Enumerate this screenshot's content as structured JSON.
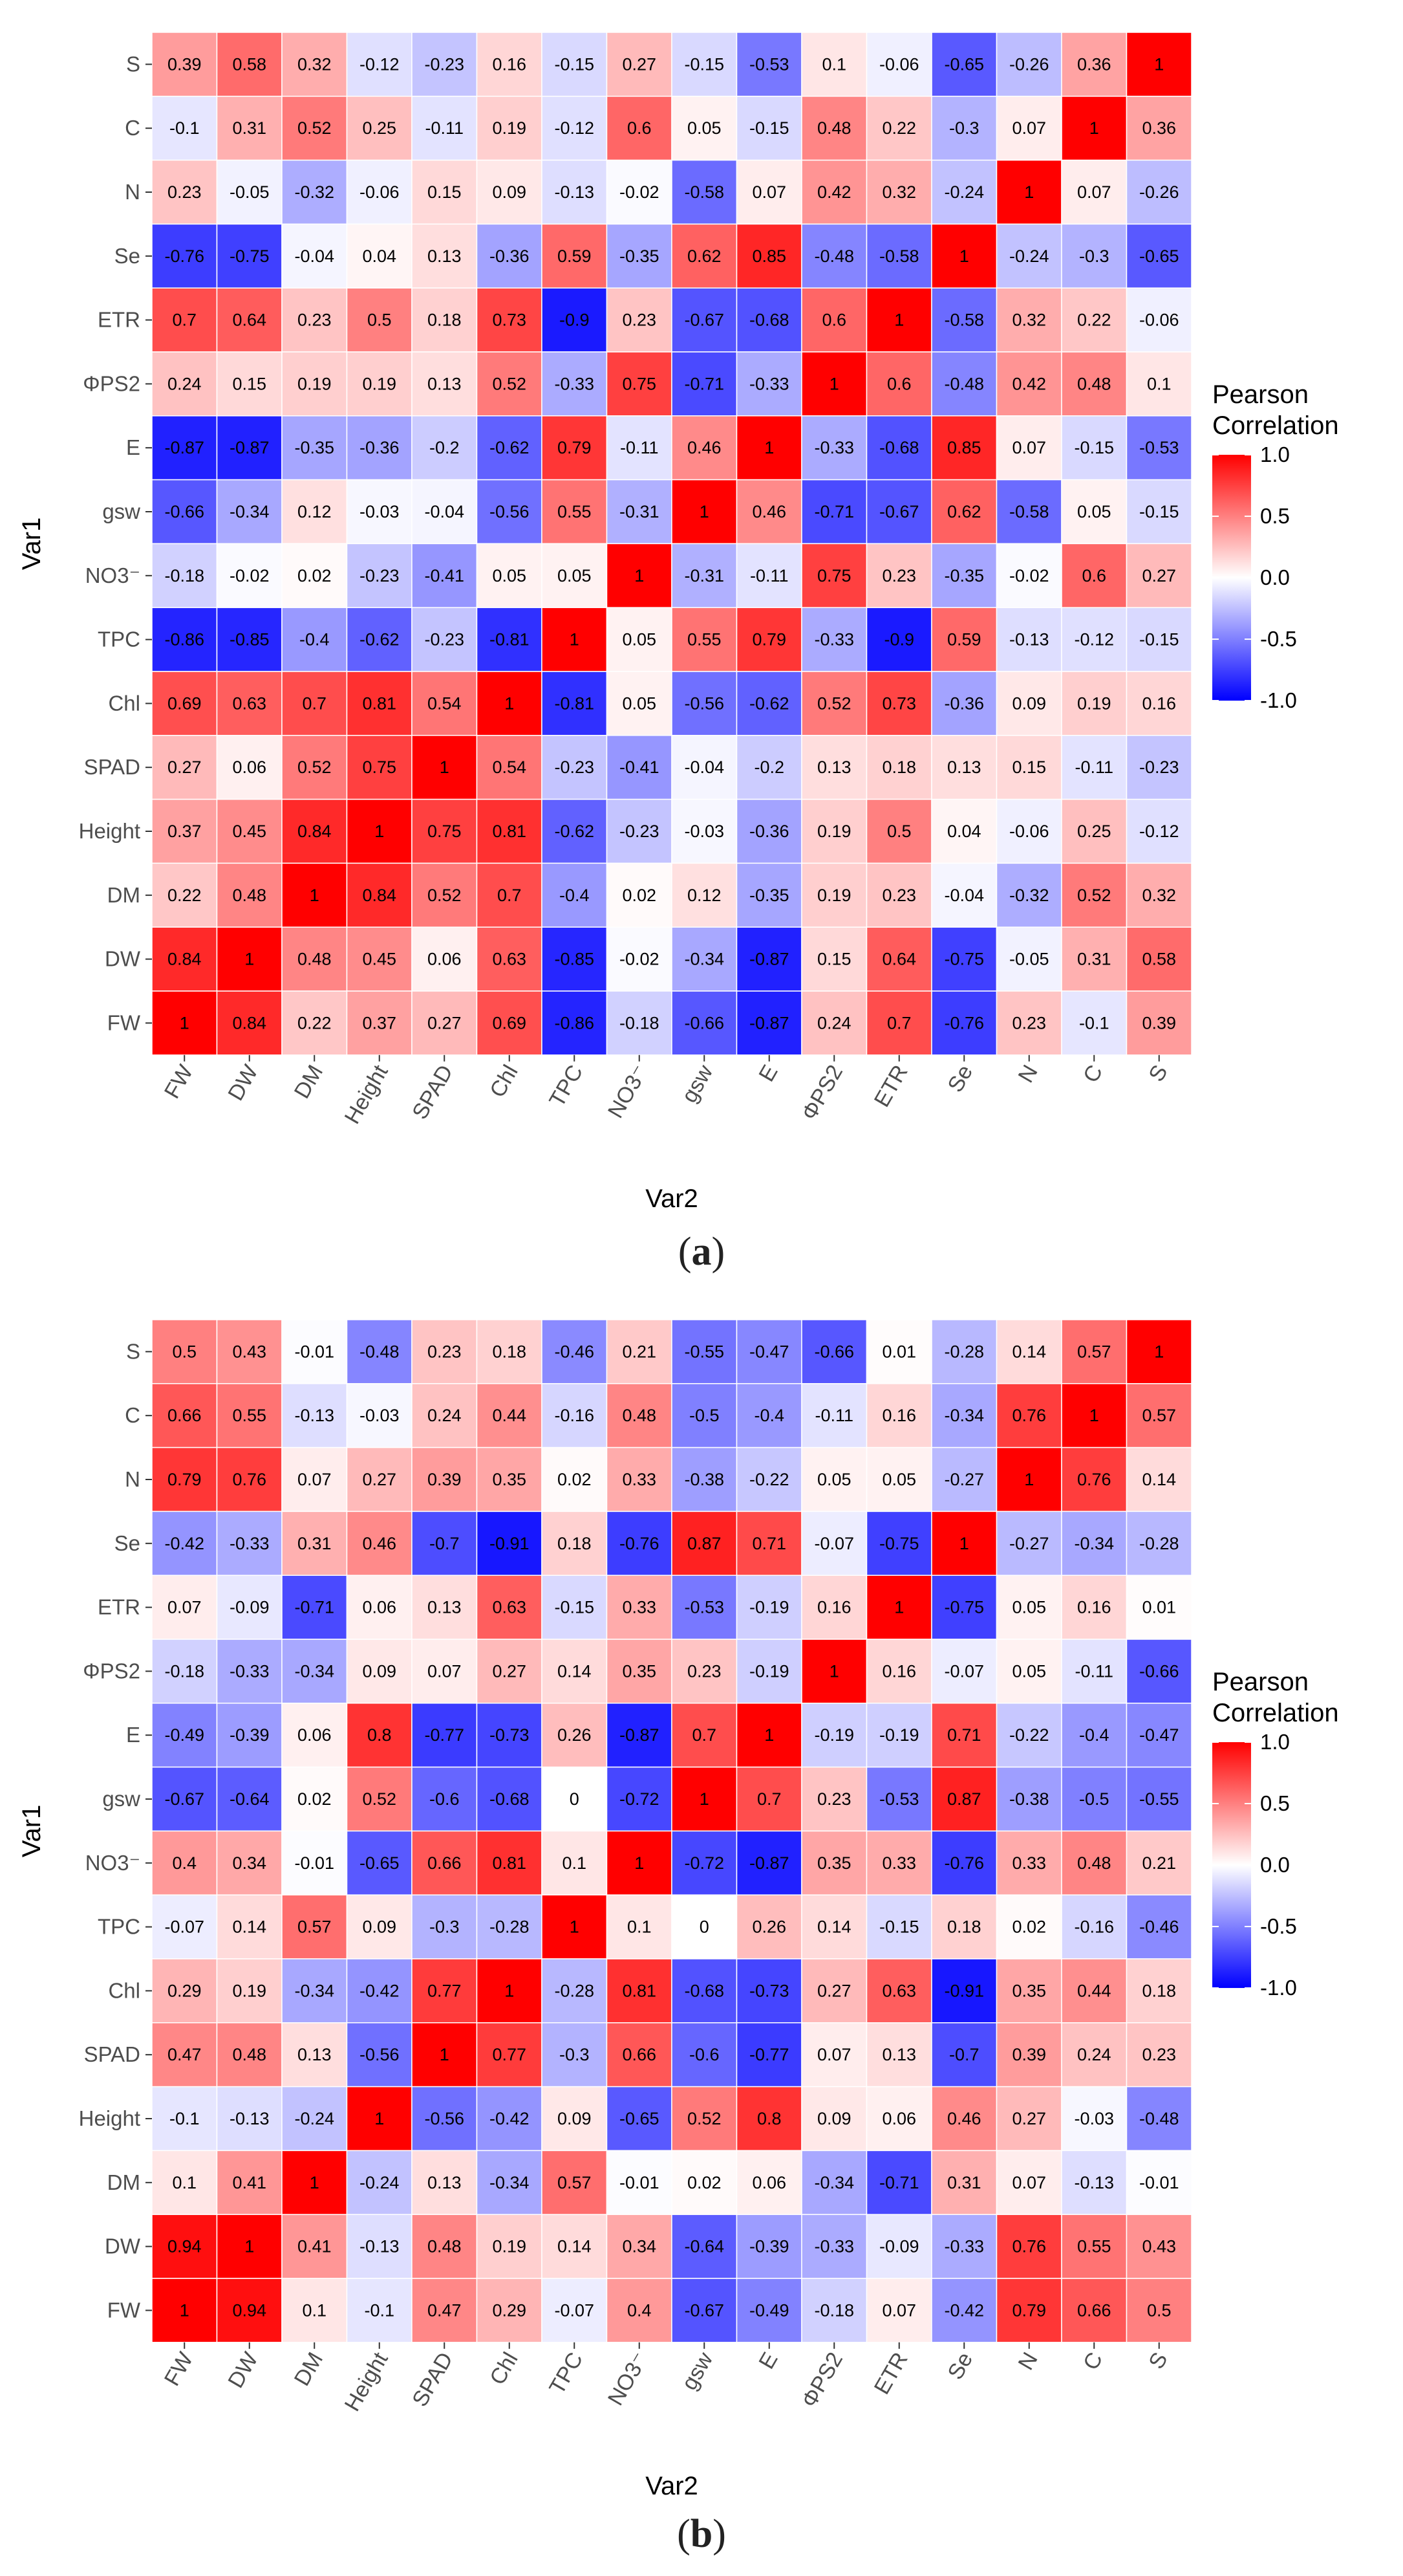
{
  "chart_data": [
    {
      "type": "heatmap",
      "panel": "a",
      "caption_open": "(",
      "caption_letter": "a",
      "caption_close": ")",
      "xlabel": "Var2",
      "ylabel": "Var1",
      "legend_title_line1": "Pearson",
      "legend_title_line2": "Correlation",
      "legend_ticks": [
        "1.0",
        "0.5",
        "0.0",
        "-0.5",
        "-1.0"
      ],
      "legend_tick_values": [
        1.0,
        0.5,
        0.0,
        -0.5,
        -1.0
      ],
      "color_low": "#0000FF",
      "color_mid": "#FFFFFF",
      "color_high": "#FF0000",
      "value_range": [
        -1,
        1
      ],
      "x_categories": [
        "FW",
        "DW",
        "DM",
        "Height",
        "SPAD",
        "Chl",
        "TPC",
        "NO3⁻",
        "gsw",
        "E",
        "ΦPS2",
        "ETR",
        "Se",
        "N",
        "C",
        "S"
      ],
      "y_categories": [
        "S",
        "C",
        "N",
        "Se",
        "ETR",
        "ΦPS2",
        "E",
        "gsw",
        "NO3⁻",
        "TPC",
        "Chl",
        "SPAD",
        "Height",
        "DM",
        "DW",
        "FW"
      ],
      "values": [
        [
          0.39,
          0.58,
          0.32,
          -0.12,
          -0.23,
          0.16,
          -0.15,
          0.27,
          -0.15,
          -0.53,
          0.1,
          -0.06,
          -0.65,
          -0.26,
          0.36,
          1
        ],
        [
          -0.1,
          0.31,
          0.52,
          0.25,
          -0.11,
          0.19,
          -0.12,
          0.6,
          0.05,
          -0.15,
          0.48,
          0.22,
          -0.3,
          0.07,
          1,
          0.36
        ],
        [
          0.23,
          -0.05,
          -0.32,
          -0.06,
          0.15,
          0.09,
          -0.13,
          -0.02,
          -0.58,
          0.07,
          0.42,
          0.32,
          -0.24,
          1,
          0.07,
          -0.26
        ],
        [
          -0.76,
          -0.75,
          -0.04,
          0.04,
          0.13,
          -0.36,
          0.59,
          -0.35,
          0.62,
          0.85,
          -0.48,
          -0.58,
          1,
          -0.24,
          -0.3,
          -0.65
        ],
        [
          0.7,
          0.64,
          0.23,
          0.5,
          0.18,
          0.73,
          -0.9,
          0.23,
          -0.67,
          -0.68,
          0.6,
          1,
          -0.58,
          0.32,
          0.22,
          -0.06
        ],
        [
          0.24,
          0.15,
          0.19,
          0.19,
          0.13,
          0.52,
          -0.33,
          0.75,
          -0.71,
          -0.33,
          1,
          0.6,
          -0.48,
          0.42,
          0.48,
          0.1
        ],
        [
          -0.87,
          -0.87,
          -0.35,
          -0.36,
          -0.2,
          -0.62,
          0.79,
          -0.11,
          0.46,
          1,
          -0.33,
          -0.68,
          0.85,
          0.07,
          -0.15,
          -0.53
        ],
        [
          -0.66,
          -0.34,
          0.12,
          -0.03,
          -0.04,
          -0.56,
          0.55,
          -0.31,
          1,
          0.46,
          -0.71,
          -0.67,
          0.62,
          -0.58,
          0.05,
          -0.15
        ],
        [
          -0.18,
          -0.02,
          0.02,
          -0.23,
          -0.41,
          0.05,
          0.05,
          1,
          -0.31,
          -0.11,
          0.75,
          0.23,
          -0.35,
          -0.02,
          0.6,
          0.27
        ],
        [
          -0.86,
          -0.85,
          -0.4,
          -0.62,
          -0.23,
          -0.81,
          1,
          0.05,
          0.55,
          0.79,
          -0.33,
          -0.9,
          0.59,
          -0.13,
          -0.12,
          -0.15
        ],
        [
          0.69,
          0.63,
          0.7,
          0.81,
          0.54,
          1,
          -0.81,
          0.05,
          -0.56,
          -0.62,
          0.52,
          0.73,
          -0.36,
          0.09,
          0.19,
          0.16
        ],
        [
          0.27,
          0.06,
          0.52,
          0.75,
          1,
          0.54,
          -0.23,
          -0.41,
          -0.04,
          -0.2,
          0.13,
          0.18,
          0.13,
          0.15,
          -0.11,
          -0.23
        ],
        [
          0.37,
          0.45,
          0.84,
          1,
          0.75,
          0.81,
          -0.62,
          -0.23,
          -0.03,
          -0.36,
          0.19,
          0.5,
          0.04,
          -0.06,
          0.25,
          -0.12
        ],
        [
          0.22,
          0.48,
          1,
          0.84,
          0.52,
          0.7,
          -0.4,
          0.02,
          0.12,
          -0.35,
          0.19,
          0.23,
          -0.04,
          -0.32,
          0.52,
          0.32
        ],
        [
          0.84,
          1,
          0.48,
          0.45,
          0.06,
          0.63,
          -0.85,
          -0.02,
          -0.34,
          -0.87,
          0.15,
          0.64,
          -0.75,
          -0.05,
          0.31,
          0.58
        ],
        [
          1,
          0.84,
          0.22,
          0.37,
          0.27,
          0.69,
          -0.86,
          -0.18,
          -0.66,
          -0.87,
          0.24,
          0.7,
          -0.76,
          0.23,
          -0.1,
          0.39
        ]
      ]
    },
    {
      "type": "heatmap",
      "panel": "b",
      "caption_open": "(",
      "caption_letter": "b",
      "caption_close": ")",
      "xlabel": "Var2",
      "ylabel": "Var1",
      "legend_title_line1": "Pearson",
      "legend_title_line2": "Correlation",
      "legend_ticks": [
        "1.0",
        "0.5",
        "0.0",
        "-0.5",
        "-1.0"
      ],
      "legend_tick_values": [
        1.0,
        0.5,
        0.0,
        -0.5,
        -1.0
      ],
      "color_low": "#0000FF",
      "color_mid": "#FFFFFF",
      "color_high": "#FF0000",
      "value_range": [
        -1,
        1
      ],
      "x_categories": [
        "FW",
        "DW",
        "DM",
        "Height",
        "SPAD",
        "Chl",
        "TPC",
        "NO3⁻",
        "gsw",
        "E",
        "ΦPS2",
        "ETR",
        "Se",
        "N",
        "C",
        "S"
      ],
      "y_categories": [
        "S",
        "C",
        "N",
        "Se",
        "ETR",
        "ΦPS2",
        "E",
        "gsw",
        "NO3⁻",
        "TPC",
        "Chl",
        "SPAD",
        "Height",
        "DM",
        "DW",
        "FW"
      ],
      "values": [
        [
          0.5,
          0.43,
          -0.01,
          -0.48,
          0.23,
          0.18,
          -0.46,
          0.21,
          -0.55,
          -0.47,
          -0.66,
          0.01,
          -0.28,
          0.14,
          0.57,
          1
        ],
        [
          0.66,
          0.55,
          -0.13,
          -0.03,
          0.24,
          0.44,
          -0.16,
          0.48,
          -0.5,
          -0.4,
          -0.11,
          0.16,
          -0.34,
          0.76,
          1,
          0.57
        ],
        [
          0.79,
          0.76,
          0.07,
          0.27,
          0.39,
          0.35,
          0.02,
          0.33,
          -0.38,
          -0.22,
          0.05,
          0.05,
          -0.27,
          1,
          0.76,
          0.14
        ],
        [
          -0.42,
          -0.33,
          0.31,
          0.46,
          -0.7,
          -0.91,
          0.18,
          -0.76,
          0.87,
          0.71,
          -0.07,
          -0.75,
          1,
          -0.27,
          -0.34,
          -0.28
        ],
        [
          0.07,
          -0.09,
          -0.71,
          0.06,
          0.13,
          0.63,
          -0.15,
          0.33,
          -0.53,
          -0.19,
          0.16,
          1,
          -0.75,
          0.05,
          0.16,
          0.01
        ],
        [
          -0.18,
          -0.33,
          -0.34,
          0.09,
          0.07,
          0.27,
          0.14,
          0.35,
          0.23,
          -0.19,
          1,
          0.16,
          -0.07,
          0.05,
          -0.11,
          -0.66
        ],
        [
          -0.49,
          -0.39,
          0.06,
          0.8,
          -0.77,
          -0.73,
          0.26,
          -0.87,
          0.7,
          1,
          -0.19,
          -0.19,
          0.71,
          -0.22,
          -0.4,
          -0.47
        ],
        [
          -0.67,
          -0.64,
          0.02,
          0.52,
          -0.6,
          -0.68,
          0,
          -0.72,
          1,
          0.7,
          0.23,
          -0.53,
          0.87,
          -0.38,
          -0.5,
          -0.55
        ],
        [
          0.4,
          0.34,
          -0.01,
          -0.65,
          0.66,
          0.81,
          0.1,
          1,
          -0.72,
          -0.87,
          0.35,
          0.33,
          -0.76,
          0.33,
          0.48,
          0.21
        ],
        [
          -0.07,
          0.14,
          0.57,
          0.09,
          -0.3,
          -0.28,
          1,
          0.1,
          0,
          0.26,
          0.14,
          -0.15,
          0.18,
          0.02,
          -0.16,
          -0.46
        ],
        [
          0.29,
          0.19,
          -0.34,
          -0.42,
          0.77,
          1,
          -0.28,
          0.81,
          -0.68,
          -0.73,
          0.27,
          0.63,
          -0.91,
          0.35,
          0.44,
          0.18
        ],
        [
          0.47,
          0.48,
          0.13,
          -0.56,
          1,
          0.77,
          -0.3,
          0.66,
          -0.6,
          -0.77,
          0.07,
          0.13,
          -0.7,
          0.39,
          0.24,
          0.23
        ],
        [
          -0.1,
          -0.13,
          -0.24,
          1,
          -0.56,
          -0.42,
          0.09,
          -0.65,
          0.52,
          0.8,
          0.09,
          0.06,
          0.46,
          0.27,
          -0.03,
          -0.48
        ],
        [
          0.1,
          0.41,
          1,
          -0.24,
          0.13,
          -0.34,
          0.57,
          -0.01,
          0.02,
          0.06,
          -0.34,
          -0.71,
          0.31,
          0.07,
          -0.13,
          -0.01
        ],
        [
          0.94,
          1,
          0.41,
          -0.13,
          0.48,
          0.19,
          0.14,
          0.34,
          -0.64,
          -0.39,
          -0.33,
          -0.09,
          -0.33,
          0.76,
          0.55,
          0.43
        ],
        [
          1,
          0.94,
          0.1,
          -0.1,
          0.47,
          0.29,
          -0.07,
          0.4,
          -0.67,
          -0.49,
          -0.18,
          0.07,
          -0.42,
          0.79,
          0.66,
          0.5
        ]
      ]
    }
  ]
}
